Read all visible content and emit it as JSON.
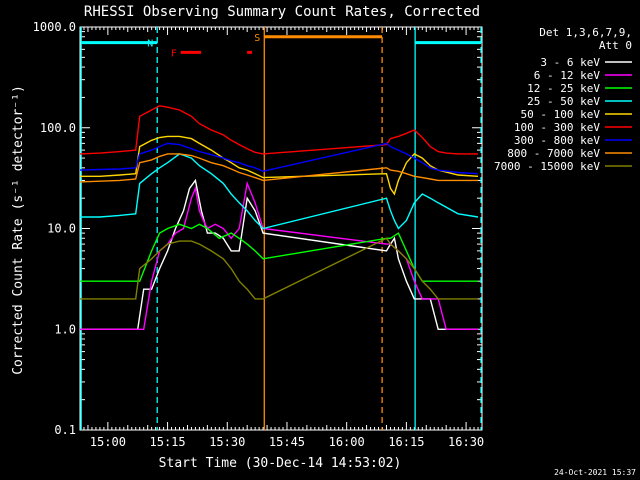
{
  "chart_data": {
    "type": "line",
    "title": "RHESSI Observing Summary Count Rates, Corrected",
    "xlabel": "Start Time (30-Dec-14 14:53:02)",
    "ylabel": "Corrected Count Rate (s⁻¹ detector⁻¹)",
    "x_units": "minutes after 14:53:02",
    "xlim": [
      0,
      101
    ],
    "ylim": [
      0.1,
      1000
    ],
    "yscale": "log",
    "x_ticks": [
      {
        "x": 7,
        "label": "15:00"
      },
      {
        "x": 22,
        "label": "15:15"
      },
      {
        "x": 37,
        "label": "15:30"
      },
      {
        "x": 52,
        "label": "15:45"
      },
      {
        "x": 67,
        "label": "16:00"
      },
      {
        "x": 82,
        "label": "16:15"
      },
      {
        "x": 97,
        "label": "16:30"
      }
    ],
    "y_ticks": [
      {
        "y": 0.1,
        "label": "0.1"
      },
      {
        "y": 1,
        "label": "1.0"
      },
      {
        "y": 10,
        "label": "10.0"
      },
      {
        "y": 100,
        "label": "100.0"
      },
      {
        "y": 1000,
        "label": "1000.0"
      }
    ],
    "grid": false,
    "legend_header": [
      "Det 1,3,6,7,9,",
      "Att 0"
    ],
    "legend_position": "right",
    "footer_date": "24-Oct-2021 15:37",
    "gaps": [
      [
        38,
        77
      ]
    ],
    "vlines": [
      {
        "x": 0.3,
        "color": "#00ffff",
        "style": "solid"
      },
      {
        "x": 19.4,
        "color": "#00ffff",
        "style": "dashed"
      },
      {
        "x": 46.3,
        "color": "#ff8c00",
        "style": "solid"
      },
      {
        "x": 75.9,
        "color": "#ff8c00",
        "style": "dashed"
      },
      {
        "x": 84.2,
        "color": "#00ffff",
        "style": "solid"
      },
      {
        "x": 102.0,
        "color": "#00ffff",
        "style": "dashed"
      }
    ],
    "flag_bars": [
      {
        "label": "",
        "color": "#00ffff",
        "x0": 0.3,
        "x1": 19.4,
        "y": 700
      },
      {
        "label": "N",
        "color": "#00ffff",
        "x0": 19.4,
        "x1": 19.4,
        "y": 700
      },
      {
        "label": "S",
        "color": "#ff8c00",
        "x0": 46.3,
        "x1": 75.9,
        "y": 800
      },
      {
        "label": "",
        "color": "#00ffff",
        "x0": 84.2,
        "x1": 102.0,
        "y": 700
      },
      {
        "label": "F",
        "color": "#ff0000",
        "x0": 25.3,
        "x1": 30.4,
        "y": 560
      },
      {
        "label": "",
        "color": "#ff0000",
        "x0": 42.0,
        "x1": 43.2,
        "y": 560
      }
    ],
    "series": [
      {
        "name": "3 - 6 keV",
        "color": "#ffffff",
        "x": [
          0,
          14.5,
          16,
          18,
          20,
          22,
          24,
          26,
          27.5,
          29,
          30.5,
          32,
          34,
          36,
          38,
          40,
          42,
          44,
          46,
          77,
          78,
          79,
          80,
          82,
          84,
          86,
          88,
          90,
          92,
          94,
          96,
          98,
          100
        ],
        "y": [
          1.0,
          1.0,
          2.5,
          2.5,
          4.0,
          6.0,
          10.0,
          15.0,
          25.0,
          30.0,
          15.0,
          9.0,
          9.0,
          8.0,
          6.0,
          6.0,
          20.0,
          15.0,
          9.0,
          6.0,
          7.0,
          8.0,
          5.0,
          3.0,
          2.0,
          2.0,
          2.0,
          1.0,
          1.0,
          1.0,
          1.0,
          1.0,
          1.0
        ]
      },
      {
        "name": "6 - 12 keV",
        "color": "#ff00ff",
        "x": [
          0,
          16,
          18,
          20,
          22,
          24,
          26,
          28,
          29,
          30,
          31,
          32,
          34,
          36,
          38,
          40,
          42,
          44,
          46,
          77,
          78,
          80,
          82,
          84,
          86,
          88,
          90,
          92,
          94,
          100
        ],
        "y": [
          1.0,
          1.0,
          3.0,
          6.0,
          7.0,
          9.0,
          10.0,
          20.0,
          25.0,
          15.0,
          12.0,
          10.0,
          11.0,
          10.0,
          8.0,
          10.0,
          28.0,
          18.0,
          10.0,
          7.0,
          7.0,
          6.0,
          5.0,
          3.0,
          2.0,
          2.0,
          2.0,
          1.0,
          1.0,
          1.0
        ]
      },
      {
        "name": "12 - 25 keV",
        "color": "#00ff00",
        "x": [
          0,
          5,
          10,
          15,
          18,
          20,
          22,
          25,
          28,
          30,
          32,
          35,
          38,
          40,
          42,
          44,
          46,
          77,
          78,
          80,
          82,
          84,
          86,
          88,
          90,
          92,
          94,
          96,
          98,
          100
        ],
        "y": [
          3.0,
          3.0,
          3.0,
          3.0,
          6.0,
          9.0,
          10.0,
          11.0,
          10.0,
          11.0,
          10.0,
          8.0,
          9.0,
          8.0,
          7.0,
          6.0,
          5.0,
          8.0,
          8.0,
          9.0,
          6.0,
          4.0,
          3.0,
          3.0,
          3.0,
          3.0,
          3.0,
          3.0,
          3.0,
          3.0
        ]
      },
      {
        "name": "25 - 50 keV",
        "color": "#00ffff",
        "x": [
          0,
          5,
          10,
          14,
          15,
          18,
          20,
          22,
          25,
          28,
          30,
          33,
          36,
          38,
          40,
          42,
          44,
          46,
          77,
          78,
          79,
          80,
          82,
          84,
          86,
          88,
          90,
          95,
          100
        ],
        "y": [
          13.0,
          13.0,
          13.5,
          14.0,
          28.0,
          35.0,
          40.0,
          45.0,
          55.0,
          50.0,
          42.0,
          35.0,
          28.0,
          22.0,
          18.0,
          15.0,
          12.0,
          10.0,
          20.0,
          15.0,
          12.0,
          10.0,
          12.0,
          18.0,
          22.0,
          20.0,
          18.0,
          14.0,
          13.0
        ]
      },
      {
        "name": "50 - 100 keV",
        "color": "#ffd700",
        "x": [
          0,
          5,
          10,
          14,
          15,
          18,
          20,
          22,
          25,
          28,
          30,
          33,
          36,
          38,
          40,
          42,
          44,
          46,
          77,
          78,
          79,
          80,
          82,
          84,
          86,
          88,
          90,
          95,
          100
        ],
        "y": [
          33.0,
          33.0,
          34.0,
          35.0,
          65.0,
          75.0,
          80.0,
          82.0,
          82.0,
          78.0,
          70.0,
          60.0,
          50.0,
          45.0,
          40.0,
          38.0,
          35.0,
          32.0,
          35.0,
          25.0,
          22.0,
          30.0,
          45.0,
          55.0,
          50.0,
          42.0,
          38.0,
          34.0,
          33.0
        ]
      },
      {
        "name": "100 - 300 keV",
        "color": "#ff0000",
        "x": [
          0,
          5,
          10,
          14,
          15,
          18,
          20,
          22,
          25,
          28,
          30,
          33,
          36,
          38,
          40,
          42,
          44,
          46,
          77,
          78,
          80,
          82,
          84,
          86,
          88,
          90,
          92,
          95,
          100
        ],
        "y": [
          55.0,
          56.0,
          58.0,
          60.0,
          130.0,
          150.0,
          165.0,
          160.0,
          150.0,
          130.0,
          110.0,
          95.0,
          85.0,
          75.0,
          68.0,
          62.0,
          57.0,
          55.0,
          68.0,
          78.0,
          82.0,
          88.0,
          95.0,
          80.0,
          65.0,
          58.0,
          56.0,
          55.0,
          55.0
        ]
      },
      {
        "name": "300 - 800 keV",
        "color": "#0000ff",
        "x": [
          0,
          5,
          10,
          14,
          15,
          18,
          20,
          22,
          25,
          28,
          30,
          33,
          36,
          38,
          40,
          42,
          44,
          46,
          77,
          78,
          80,
          82,
          84,
          86,
          88,
          90,
          95,
          100
        ],
        "y": [
          38.0,
          38.5,
          39.0,
          40.0,
          55.0,
          60.0,
          65.0,
          70.0,
          68.0,
          62.0,
          58.0,
          54.0,
          50.0,
          47.0,
          45.0,
          42.0,
          40.0,
          37.0,
          70.0,
          65.0,
          60.0,
          55.0,
          50.0,
          45.0,
          40.0,
          38.0,
          36.0,
          35.0
        ]
      },
      {
        "name": "800 - 7000 keV",
        "color": "#ff8c00",
        "x": [
          0,
          5,
          10,
          14,
          15,
          18,
          20,
          22,
          25,
          28,
          30,
          33,
          36,
          38,
          40,
          42,
          44,
          46,
          77,
          78,
          80,
          82,
          84,
          86,
          88,
          90,
          95,
          100
        ],
        "y": [
          29.0,
          29.5,
          30.0,
          31.0,
          45.0,
          48.0,
          52.0,
          55.0,
          55.0,
          53.0,
          50.0,
          45.0,
          42.0,
          39.0,
          36.0,
          34.0,
          32.0,
          30.0,
          40.0,
          38.0,
          37.0,
          35.0,
          33.0,
          32.0,
          31.0,
          30.0,
          30.0,
          30.0
        ]
      },
      {
        "name": "7000 - 15000 keV",
        "color": "#808000",
        "x": [
          0,
          5,
          10,
          14,
          15,
          18,
          20,
          22,
          25,
          28,
          30,
          33,
          36,
          38,
          40,
          42,
          44,
          46,
          77,
          78,
          80,
          82,
          84,
          86,
          88,
          90,
          92,
          94,
          96,
          98,
          100
        ],
        "y": [
          2.0,
          2.0,
          2.0,
          2.0,
          4.0,
          5.0,
          6.0,
          7.0,
          7.5,
          7.5,
          7.0,
          6.0,
          5.0,
          4.0,
          3.0,
          2.5,
          2.0,
          2.0,
          8.0,
          7.0,
          6.0,
          5.0,
          4.0,
          3.0,
          2.5,
          2.0,
          2.0,
          2.0,
          2.0,
          2.0,
          2.0
        ]
      }
    ]
  }
}
